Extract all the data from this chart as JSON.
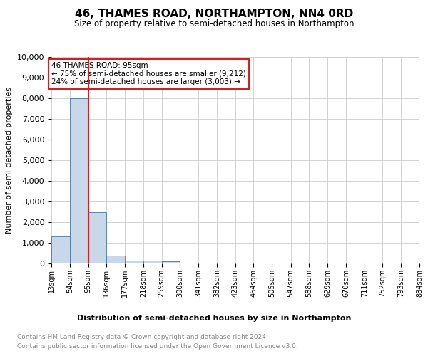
{
  "title": "46, THAMES ROAD, NORTHAMPTON, NN4 0RD",
  "subtitle": "Size of property relative to semi-detached houses in Northampton",
  "xlabel": "Distribution of semi-detached houses by size in Northampton",
  "ylabel": "Number of semi-detached properties",
  "footer_line1": "Contains HM Land Registry data © Crown copyright and database right 2024.",
  "footer_line2": "Contains public sector information licensed under the Open Government Licence v3.0.",
  "property_label": "46 THAMES ROAD: 95sqm",
  "annotation_line1": "← 75% of semi-detached houses are smaller (9,212)",
  "annotation_line2": "24% of semi-detached houses are larger (3,003) →",
  "property_value": 95,
  "bar_edges": [
    13,
    54,
    95,
    136,
    177,
    218,
    259,
    300,
    341,
    382,
    423,
    464,
    505,
    547,
    588,
    629,
    670,
    711,
    752,
    793,
    834
  ],
  "bar_heights": [
    1300,
    8000,
    2500,
    380,
    130,
    130,
    100,
    0,
    0,
    0,
    0,
    0,
    0,
    0,
    0,
    0,
    0,
    0,
    0,
    0
  ],
  "tick_labels": [
    "13sqm",
    "54sqm",
    "95sqm",
    "136sqm",
    "177sqm",
    "218sqm",
    "259sqm",
    "300sqm",
    "341sqm",
    "382sqm",
    "423sqm",
    "464sqm",
    "505sqm",
    "547sqm",
    "588sqm",
    "629sqm",
    "670sqm",
    "711sqm",
    "752sqm",
    "793sqm",
    "834sqm"
  ],
  "bar_color": "#c8d8e8",
  "bar_edge_color": "#4878a0",
  "red_line_color": "#cc2222",
  "annotation_box_edge": "#cc2222",
  "grid_color": "#cccccc",
  "background_color": "#ffffff",
  "ylim": [
    0,
    10000
  ],
  "yticks": [
    0,
    1000,
    2000,
    3000,
    4000,
    5000,
    6000,
    7000,
    8000,
    9000,
    10000
  ]
}
